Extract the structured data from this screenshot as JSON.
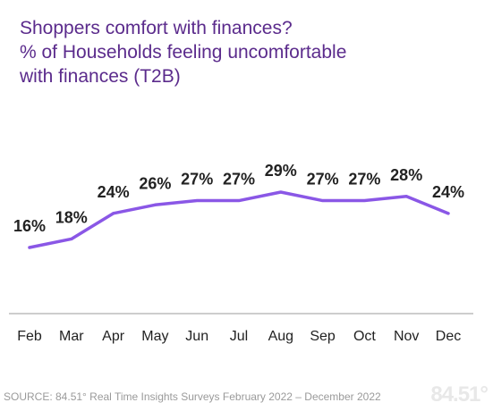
{
  "title_lines": [
    "Shoppers comfort with finances?",
    "% of Households feeling uncomfortable",
    "with finances (T2B)"
  ],
  "source": "SOURCE: 84.51° Real Time Insights Surveys February 2022 – December 2022",
  "logo_text": "84.51°",
  "colors": {
    "line": "#8a57e6",
    "title": "#5b2b8c",
    "text": "#222222",
    "axis": "#9b9b9b"
  },
  "chart_data": {
    "type": "line",
    "categories": [
      "Feb",
      "Mar",
      "Apr",
      "May",
      "Jun",
      "Jul",
      "Aug",
      "Sep",
      "Oct",
      "Nov",
      "Dec"
    ],
    "values": [
      16,
      18,
      24,
      26,
      27,
      27,
      29,
      27,
      27,
      28,
      24
    ],
    "data_labels": [
      "16%",
      "18%",
      "24%",
      "26%",
      "27%",
      "27%",
      "29%",
      "27%",
      "27%",
      "28%",
      "24%"
    ],
    "title": "",
    "xlabel": "",
    "ylabel": "",
    "grid": false,
    "legend": "none"
  }
}
